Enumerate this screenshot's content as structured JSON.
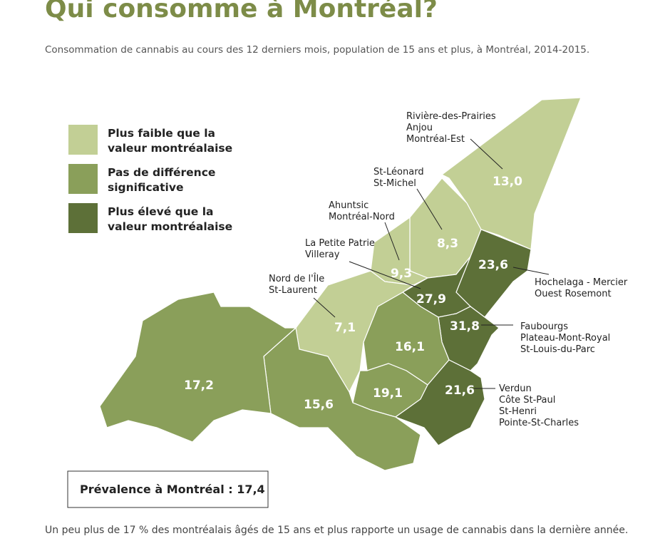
{
  "title": "Qui consomme à Montréal?",
  "subtitle": "Consommation de cannabis au cours des 12 derniers mois, population de 15 ans et plus, à Montréal, 2014-2015.",
  "legend": [
    [
      "Plus faible que la",
      "valeur montréalaise"
    ],
    [
      "Pas de différence",
      "significative"
    ],
    [
      "Plus élevé que la",
      "valeur montréalaise"
    ]
  ],
  "regions": [
    {
      "lines": [
        "Rivière-des-Prairies",
        "Anjou",
        "Montréal-Est"
      ],
      "value": "13,0"
    },
    {
      "lines": [
        "St-Léonard",
        "St-Michel"
      ],
      "value": "8,3"
    },
    {
      "lines": [
        "Ahuntsic",
        "Montréal-Nord"
      ],
      "value": "9,3"
    },
    {
      "lines": [
        "La Petite Patrie",
        "Villeray"
      ],
      "value": "27,9"
    },
    {
      "lines": [
        "Nord de l'Île",
        "St-Laurent"
      ],
      "value": "7,1"
    },
    {
      "lines": [
        "Hochelaga - Mercier",
        "Ouest Rosemont"
      ],
      "value": "23,6"
    },
    {
      "lines": [
        "Faubourgs",
        "Plateau-Mont-Royal",
        "St-Louis-du-Parc"
      ],
      "value": "31,8"
    },
    {
      "lines": [
        "Verdun",
        "Côte St-Paul",
        "St-Henri",
        "Pointe-St-Charles"
      ],
      "value": "21,6"
    },
    {
      "value": "16,1"
    },
    {
      "value": "19,1"
    },
    {
      "value": "15,6"
    },
    {
      "value": "17,2"
    }
  ],
  "prevalence": "Prévalence à Montréal : 17,4",
  "footer": "Un peu plus de 17 % des montréalais âgés de 15 ans et plus rapporte un usage de cannabis dans la dernière année."
}
